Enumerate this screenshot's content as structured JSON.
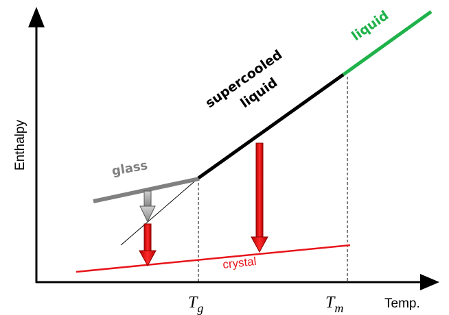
{
  "axes": {
    "y_label": "Enthalpy",
    "x_label": "Temp."
  },
  "temperatures": {
    "glass_transition": {
      "symbol": "T",
      "subscript": "g"
    },
    "melting": {
      "symbol": "T",
      "subscript": "m"
    }
  },
  "phases": {
    "glass": "glass",
    "supercooled_line1": "supercooled",
    "supercooled_line2": "liquid",
    "liquid": "liquid",
    "crystal": "crystal"
  },
  "colors": {
    "axis": "#000000",
    "glass": "#808080",
    "supercooled_liquid": "#000000",
    "liquid": "#1fb24a",
    "crystal": "#e8141a",
    "arrow_glass_relax": "#a0a0a0",
    "arrow_crystallize": "#e8141a",
    "guide_lines": "#000000"
  }
}
